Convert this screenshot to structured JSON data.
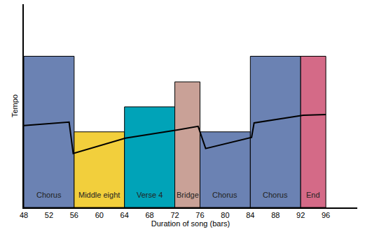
{
  "chart_data": {
    "type": "bar",
    "x_label": "Duration of song (bars)",
    "y_label": "Tempo",
    "xlim": [
      48,
      101
    ],
    "xticks": [
      48,
      52,
      56,
      60,
      64,
      68,
      72,
      76,
      80,
      84,
      88,
      92,
      96
    ],
    "ylim": [
      0,
      100
    ],
    "tick_labels": "x",
    "grid": false,
    "series": [
      {
        "type": "bar",
        "categories": [
          "Chorus",
          "Middle eight",
          "Verse 4",
          "Bridge",
          "Chorus",
          "Chorus",
          "End"
        ],
        "x_start": [
          48,
          56,
          64,
          72,
          76,
          84,
          92
        ],
        "x_end": [
          56,
          64,
          72,
          76,
          84,
          92,
          96
        ],
        "values": [
          74.4,
          37.2,
          49.5,
          61.8,
          37.2,
          74.4,
          74.4
        ],
        "colors": [
          "#6b82b3",
          "#f2cf3c",
          "#00a3b8",
          "#c9a197",
          "#6b82b3",
          "#6b82b3",
          "#d46a87"
        ]
      },
      {
        "type": "line",
        "x": [
          48,
          55.2,
          55.85,
          64.15,
          72.6,
          75.7,
          76.9,
          84.2,
          84.6,
          92.4,
          96
        ],
        "values": [
          40.3,
          42,
          26.6,
          34.1,
          38.2,
          39.9,
          29,
          34.5,
          41.6,
          45.4,
          45.7
        ],
        "color": "#000000"
      }
    ]
  }
}
